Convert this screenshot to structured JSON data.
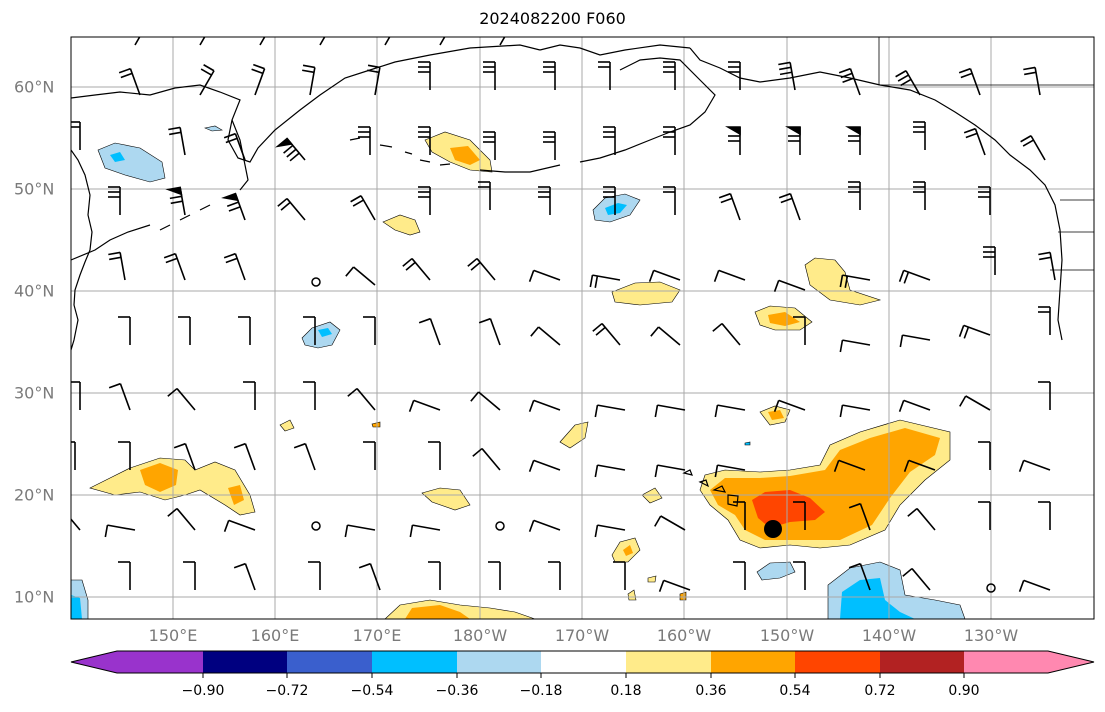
{
  "title": "2024082200 F060",
  "lat_labels": [
    "60°N",
    "50°N",
    "40°N",
    "30°N",
    "20°N",
    "10°N"
  ],
  "lon_labels": [
    "150°E",
    "160°E",
    "170°E",
    "180°W",
    "170°W",
    "160°W",
    "150°W",
    "140°W",
    "130°W"
  ],
  "colorbar": {
    "tick_labels": [
      "−0.90",
      "−0.72",
      "−0.54",
      "−0.36",
      "−0.18",
      "0.18",
      "0.36",
      "0.54",
      "0.72",
      "0.90"
    ],
    "colors": [
      "#9933cc",
      "#000080",
      "#3a5fcd",
      "#00bfff",
      "#add8f0",
      "#ffffff",
      "#ffeb8a",
      "#ffa500",
      "#ff4500",
      "#b22222",
      "#ff88b0"
    ]
  },
  "colors": {
    "grid": "#a9a9a9",
    "coast": "#000000",
    "frame": "#000000"
  }
}
